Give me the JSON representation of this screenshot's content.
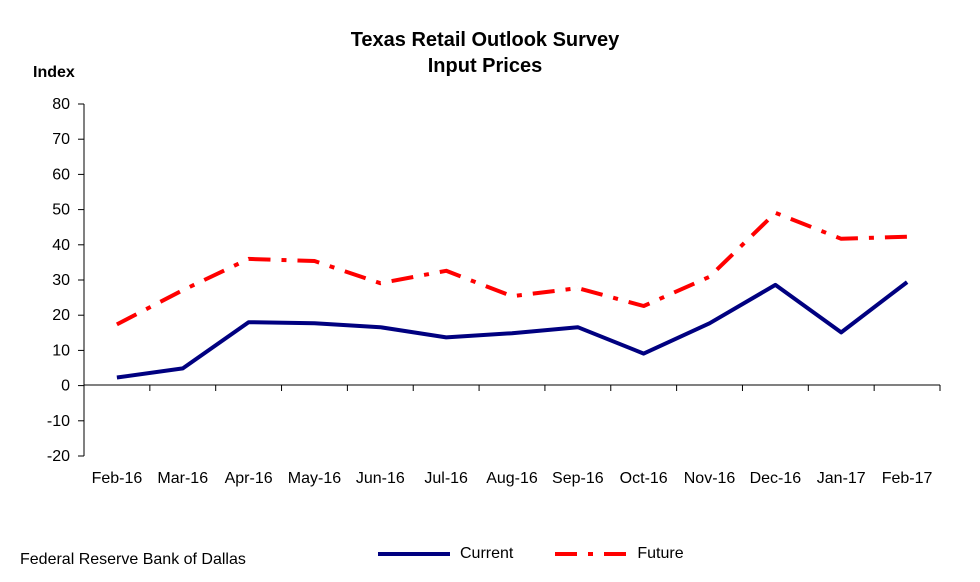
{
  "header": {
    "title_line1": "Texas Retail Outlook Survey",
    "title_line2": "Input Prices",
    "y_axis_label": "Index"
  },
  "footer": {
    "source": "Federal Reserve Bank of Dallas"
  },
  "legend": {
    "items": [
      {
        "label": "Current",
        "color": "#000080",
        "style": "solid"
      },
      {
        "label": "Future",
        "color": "#ff0000",
        "style": "dash-dot"
      }
    ],
    "placement": "bottom"
  },
  "chart_data": {
    "type": "line",
    "title": "Texas Retail Outlook Survey Input Prices",
    "ylabel": "Index",
    "xlabel": "",
    "ylim": [
      -20,
      80
    ],
    "yticks": [
      80,
      70,
      60,
      50,
      40,
      30,
      20,
      10,
      0,
      -10,
      -20
    ],
    "categories": [
      "Feb-16",
      "Mar-16",
      "Apr-16",
      "May-16",
      "Jun-16",
      "Jul-16",
      "Aug-16",
      "Sep-16",
      "Oct-16",
      "Nov-16",
      "Dec-16",
      "Jan-17",
      "Feb-17"
    ],
    "grid": false,
    "series": [
      {
        "name": "Current",
        "color": "#000080",
        "values": [
          2.3,
          4.9,
          18.0,
          17.7,
          16.6,
          13.7,
          14.9,
          16.6,
          9.1,
          17.7,
          28.6,
          15.1,
          29.4
        ]
      },
      {
        "name": "Future",
        "color": "#ff0000",
        "values": [
          17.4,
          27.1,
          36.0,
          35.4,
          29.1,
          32.6,
          25.4,
          27.7,
          22.6,
          30.9,
          49.1,
          41.7,
          42.3
        ]
      }
    ]
  }
}
